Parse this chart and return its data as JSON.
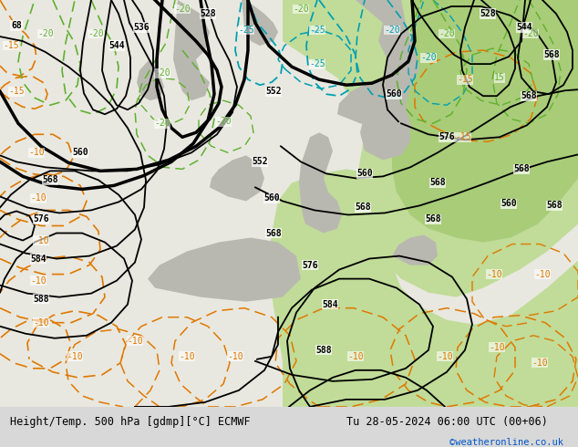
{
  "title_left": "Height/Temp. 500 hPa [gdmp][°C] ECMWF",
  "title_right": "Tu 28-05-2024 06:00 UTC (00+06)",
  "credit": "©weatheronline.co.uk",
  "bg_color": "#d8d8d8",
  "map_bg_light": "#e8e8e0",
  "map_bg_green": "#c0dc98",
  "map_bg_green2": "#a8cc78",
  "map_land": "#c8c8c0",
  "bottom_bar_color": "#e8e8e8",
  "title_fontsize": 8.5,
  "credit_color": "#0055cc",
  "bottom_bar_height": 0.09,
  "black_thick": 2.5,
  "black_thin": 1.3,
  "orange_color": "#e07800",
  "cyan_color": "#00a0b0",
  "green_temp": "#60b030"
}
